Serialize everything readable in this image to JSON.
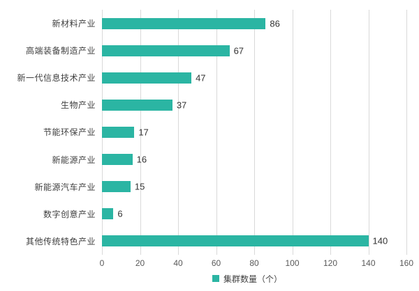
{
  "chart_data": {
    "type": "bar",
    "orientation": "horizontal",
    "title": "",
    "xlabel": "",
    "ylabel": "",
    "categories": [
      "新材料产业",
      "高端装备制造产业",
      "新一代信息技术产业",
      "生物产业",
      "节能环保产业",
      "新能源产业",
      "新能源汽车产业",
      "数字创意产业",
      "其他传统特色产业"
    ],
    "values": [
      86,
      67,
      47,
      37,
      17,
      16,
      15,
      6,
      140
    ],
    "xlim": [
      0,
      160
    ],
    "x_ticks": [
      0,
      20,
      40,
      60,
      80,
      100,
      120,
      140,
      160
    ],
    "grid": true,
    "legend": "集群数量（个）",
    "legend_position": "bottom",
    "bar_color": "#2bb5a3"
  }
}
